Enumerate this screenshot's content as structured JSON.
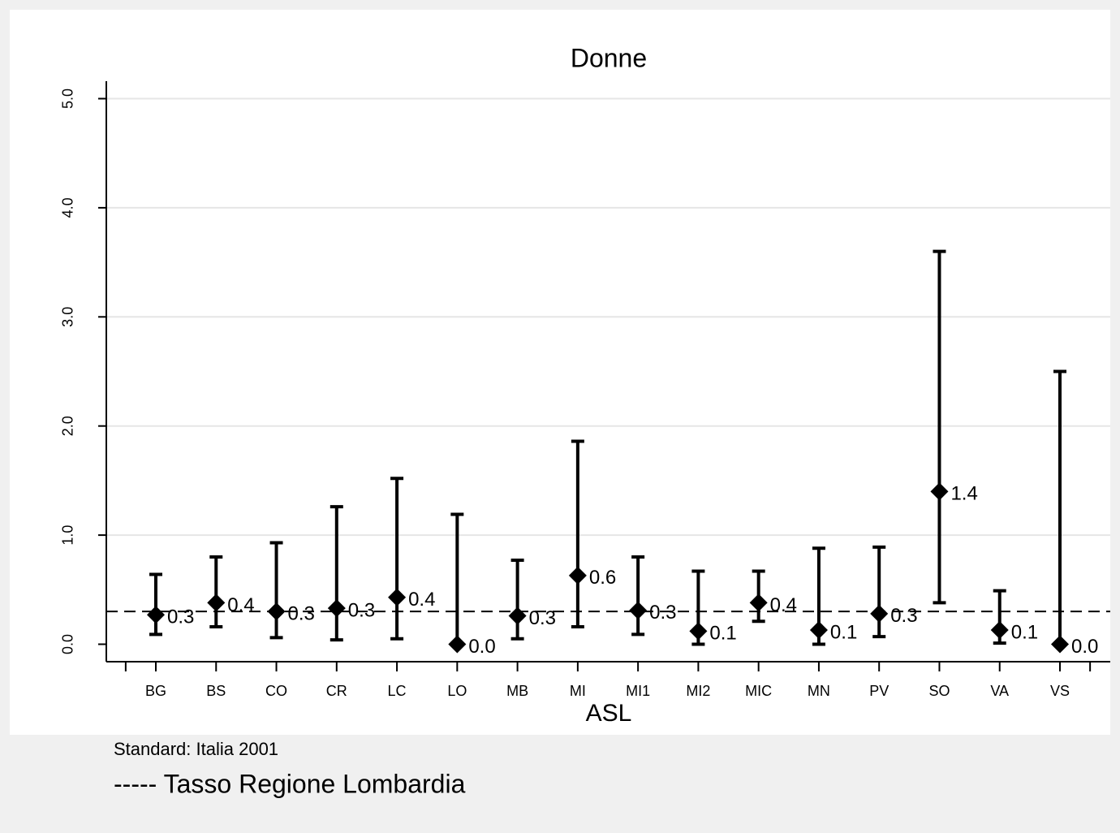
{
  "chart_data": {
    "type": "errorbar",
    "title": "Donne",
    "x_label": "ASL",
    "categories": [
      "BG",
      "BS",
      "CO",
      "CR",
      "LC",
      "LO",
      "MB",
      "MI",
      "MI1",
      "MI2",
      "MIC",
      "MN",
      "PV",
      "SO",
      "VA",
      "VS"
    ],
    "series": [
      {
        "color": "#000000",
        "values": [
          0.27,
          0.38,
          0.3,
          0.33,
          0.43,
          0.0,
          0.26,
          0.63,
          0.31,
          0.12,
          0.38,
          0.13,
          0.28,
          1.4,
          0.13,
          0.0
        ],
        "value_labels": [
          "0.3",
          "0.4",
          "0.3",
          "0.3",
          "0.4",
          "0.0",
          "0.3",
          "0.6",
          "0.3",
          "0.1",
          "0.4",
          "0.1",
          "0.3",
          "1.4",
          "0.1",
          "0.0"
        ],
        "lower": [
          0.09,
          0.16,
          0.06,
          0.04,
          0.05,
          0.0,
          0.05,
          0.16,
          0.09,
          0.0,
          0.21,
          0.0,
          0.07,
          0.38,
          0.01,
          0.0
        ],
        "upper": [
          0.64,
          0.8,
          0.93,
          1.26,
          1.52,
          1.19,
          0.77,
          1.86,
          0.8,
          0.67,
          0.67,
          0.88,
          0.89,
          3.6,
          0.49,
          2.5
        ]
      }
    ],
    "reference_value": 0.3,
    "ylim": [
      -0.16,
      5.16
    ],
    "yticks": [
      {
        "value": 0,
        "label": "0.0"
      },
      {
        "value": 1,
        "label": "1.0"
      },
      {
        "value": 2,
        "label": "2.0"
      },
      {
        "value": 3,
        "label": "3.0"
      },
      {
        "value": 4,
        "label": "4.0"
      },
      {
        "value": 5,
        "label": "5.0"
      }
    ],
    "grid": true,
    "notes": [
      "Standard: Italia 2001",
      "----- Tasso Regione Lombardia"
    ]
  }
}
